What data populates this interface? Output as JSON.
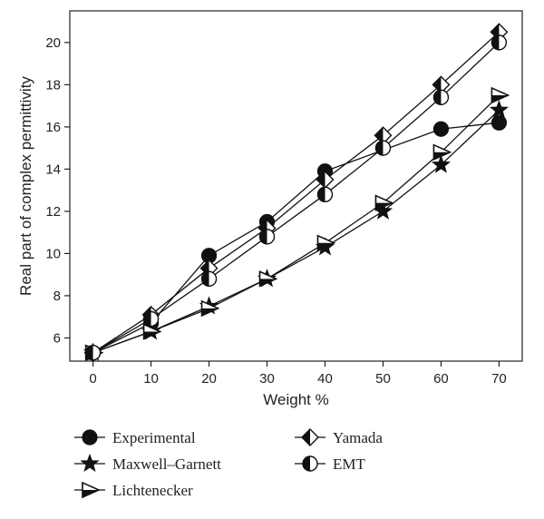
{
  "chart_data": {
    "type": "line",
    "xlabel": "Weight %",
    "ylabel": "Real part of complex permittivity",
    "xlim": [
      -4,
      74
    ],
    "ylim": [
      4.9,
      21.5
    ],
    "x_ticks": [
      0,
      10,
      20,
      30,
      40,
      50,
      60,
      70
    ],
    "y_ticks": [
      6,
      8,
      10,
      12,
      14,
      16,
      18,
      20
    ],
    "grid": false,
    "legend_position": "below",
    "x": [
      0,
      10,
      20,
      30,
      40,
      50,
      60,
      70
    ],
    "series": [
      {
        "name": "Experimental",
        "marker": "circle-filled",
        "values": [
          5.3,
          6.7,
          9.9,
          11.5,
          13.9,
          null,
          15.9,
          16.2
        ]
      },
      {
        "name": "Maxwell–Garnett",
        "marker": "star",
        "values": [
          5.3,
          6.3,
          7.5,
          8.8,
          10.3,
          12.0,
          14.2,
          16.8
        ]
      },
      {
        "name": "Lichtenecker",
        "marker": "triangle-right",
        "values": [
          5.3,
          6.3,
          7.4,
          8.8,
          10.5,
          12.4,
          14.8,
          17.5
        ]
      },
      {
        "name": "Yamada",
        "marker": "diamond-half",
        "values": [
          5.3,
          7.1,
          9.3,
          11.2,
          13.5,
          15.6,
          18.0,
          20.5
        ]
      },
      {
        "name": "EMT",
        "marker": "circle-half",
        "values": [
          5.3,
          6.9,
          8.8,
          10.8,
          12.8,
          15.0,
          17.4,
          20.0
        ]
      }
    ]
  }
}
